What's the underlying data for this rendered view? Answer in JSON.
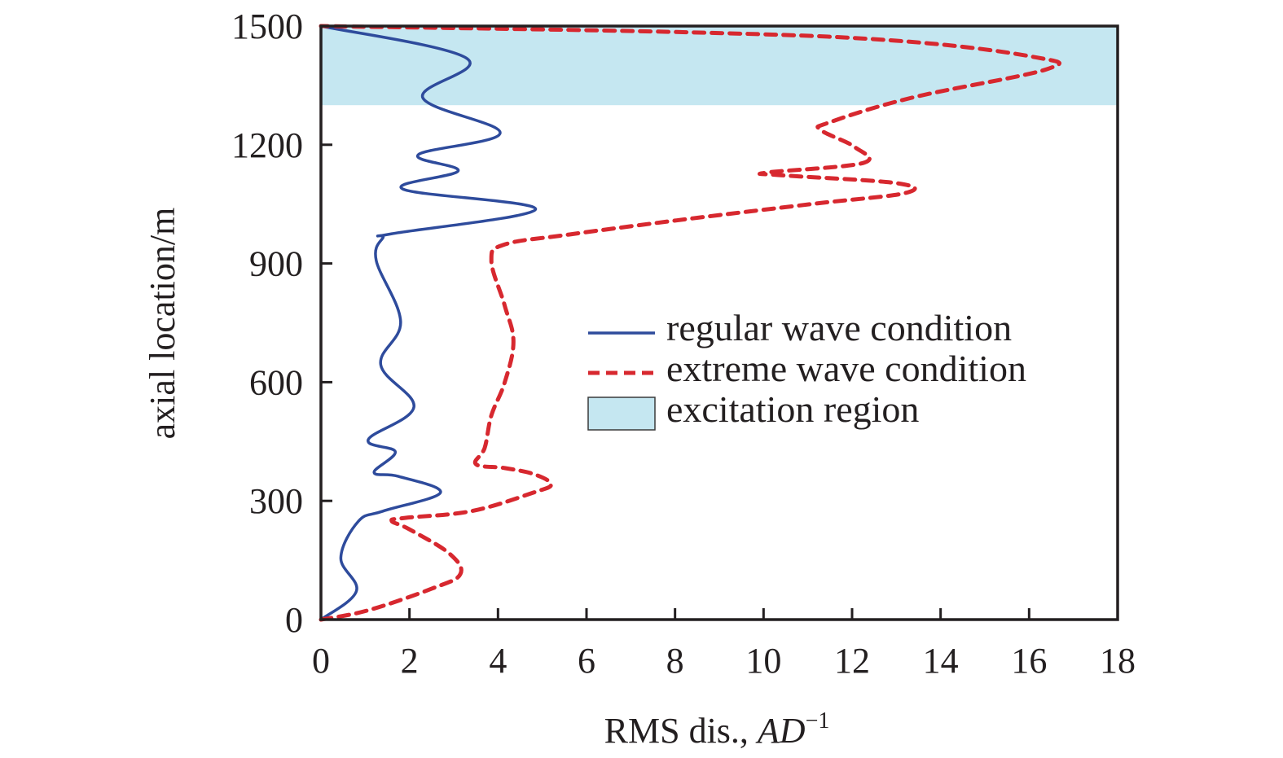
{
  "chart_data": {
    "type": "line",
    "orientation": "x-value vs y-position (profile plot)",
    "title": "",
    "xlabel": "RMS dis., AD⁻¹",
    "xlabel_parts": {
      "text": "RMS dis., ",
      "italic": "AD",
      "superscript": "−1"
    },
    "ylabel": "axial location/m",
    "xlim": [
      0,
      18
    ],
    "ylim": [
      0,
      1500
    ],
    "x_ticks": [
      0,
      2,
      4,
      6,
      8,
      10,
      12,
      14,
      16,
      18
    ],
    "y_ticks": [
      0,
      300,
      600,
      900,
      1200,
      1500
    ],
    "grid": false,
    "legend_position": "center-right inside plot",
    "shaded_regions": [
      {
        "name": "excitation region",
        "y_from": 1300,
        "y_to": 1500,
        "color": "#c5e7f1"
      }
    ],
    "series": [
      {
        "name": "regular wave condition",
        "style": "solid",
        "color": "#2e4b9c",
        "points": [
          [
            0,
            0
          ],
          [
            0.8,
            72
          ],
          [
            0.45,
            156
          ],
          [
            0.85,
            249
          ],
          [
            1.4,
            274
          ],
          [
            2.7,
            321
          ],
          [
            1.75,
            362
          ],
          [
            1.2,
            372
          ],
          [
            1.68,
            424
          ],
          [
            1.07,
            455
          ],
          [
            2.1,
            537
          ],
          [
            1.35,
            644
          ],
          [
            1.8,
            753
          ],
          [
            1.25,
            907
          ],
          [
            1.4,
            965
          ],
          [
            1.6,
            975
          ],
          [
            4.85,
            1037
          ],
          [
            1.85,
            1088
          ],
          [
            3.1,
            1134
          ],
          [
            2.2,
            1175
          ],
          [
            4.05,
            1230
          ],
          [
            2.3,
            1319
          ],
          [
            3.3,
            1418
          ],
          [
            0,
            1500
          ]
        ]
      },
      {
        "name": "extreme wave condition",
        "style": "dashed",
        "color": "#d7282f",
        "points": [
          [
            0,
            0
          ],
          [
            1.05,
            23
          ],
          [
            2.5,
            78
          ],
          [
            3.15,
            115
          ],
          [
            2.9,
            167
          ],
          [
            2.0,
            228
          ],
          [
            1.6,
            249
          ],
          [
            1.9,
            257
          ],
          [
            3.4,
            274
          ],
          [
            4.8,
            321
          ],
          [
            5.2,
            342
          ],
          [
            4.8,
            368
          ],
          [
            4.15,
            383
          ],
          [
            3.5,
            393
          ],
          [
            3.7,
            434
          ],
          [
            3.85,
            516
          ],
          [
            4.15,
            599
          ],
          [
            4.35,
            702
          ],
          [
            4.15,
            794
          ],
          [
            3.85,
            907
          ],
          [
            4.15,
            948
          ],
          [
            5.6,
            973
          ],
          [
            8.4,
            1014
          ],
          [
            11.15,
            1051
          ],
          [
            13.2,
            1078
          ],
          [
            13.0,
            1103
          ],
          [
            10.4,
            1123
          ],
          [
            10.1,
            1130
          ],
          [
            12.25,
            1154
          ],
          [
            12.05,
            1195
          ],
          [
            11.3,
            1237
          ],
          [
            11.5,
            1257
          ],
          [
            13.35,
            1319
          ],
          [
            16.4,
            1391
          ],
          [
            16.1,
            1422
          ],
          [
            13.0,
            1463
          ],
          [
            8.4,
            1484
          ],
          [
            0,
            1500
          ]
        ]
      }
    ]
  },
  "legend": {
    "items": [
      {
        "label": "regular wave condition",
        "kind": "line-solid",
        "color": "#2e4b9c"
      },
      {
        "label": "extreme wave condition",
        "kind": "line-dashed",
        "color": "#d7282f"
      },
      {
        "label": "excitation region",
        "kind": "patch",
        "color": "#c5e7f1"
      }
    ]
  },
  "axes": {
    "x_title_text": "RMS dis., ",
    "x_title_italic": "AD",
    "x_title_sup": "−1",
    "y_title": "axial location/m",
    "x_tick_labels": [
      "0",
      "2",
      "4",
      "6",
      "8",
      "10",
      "12",
      "14",
      "16",
      "18"
    ],
    "y_tick_labels": [
      "0",
      "300",
      "600",
      "900",
      "1200",
      "1500"
    ]
  }
}
